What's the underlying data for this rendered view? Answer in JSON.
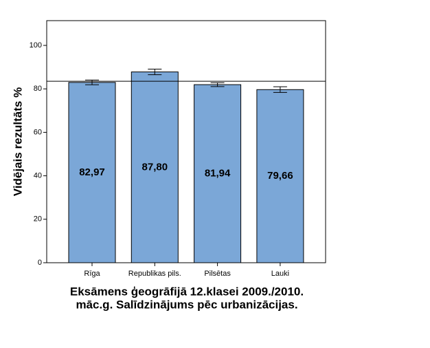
{
  "chart_data": {
    "type": "bar",
    "title": [
      "Eksāmens ģeogrāfijā 12.klasei 2009./2010.",
      "māc.g. Salīdzinājums pēc urbanizācijas."
    ],
    "y_label": "Vidējais rezultāts %",
    "categories": [
      "Rīga",
      "Republikas pils.",
      "Pilsētas",
      "Lauki"
    ],
    "values": [
      82.97,
      87.8,
      81.94,
      79.66
    ],
    "value_labels": [
      "82,97",
      "87,80",
      "81,94",
      "79,66"
    ],
    "errors": [
      1.1,
      1.3,
      0.9,
      1.3
    ],
    "reference_line": 83.5,
    "color": "#7ba7d7",
    "ylim": [
      0,
      111.4
    ],
    "yticks": [
      0,
      20,
      40,
      60,
      80,
      100
    ]
  }
}
